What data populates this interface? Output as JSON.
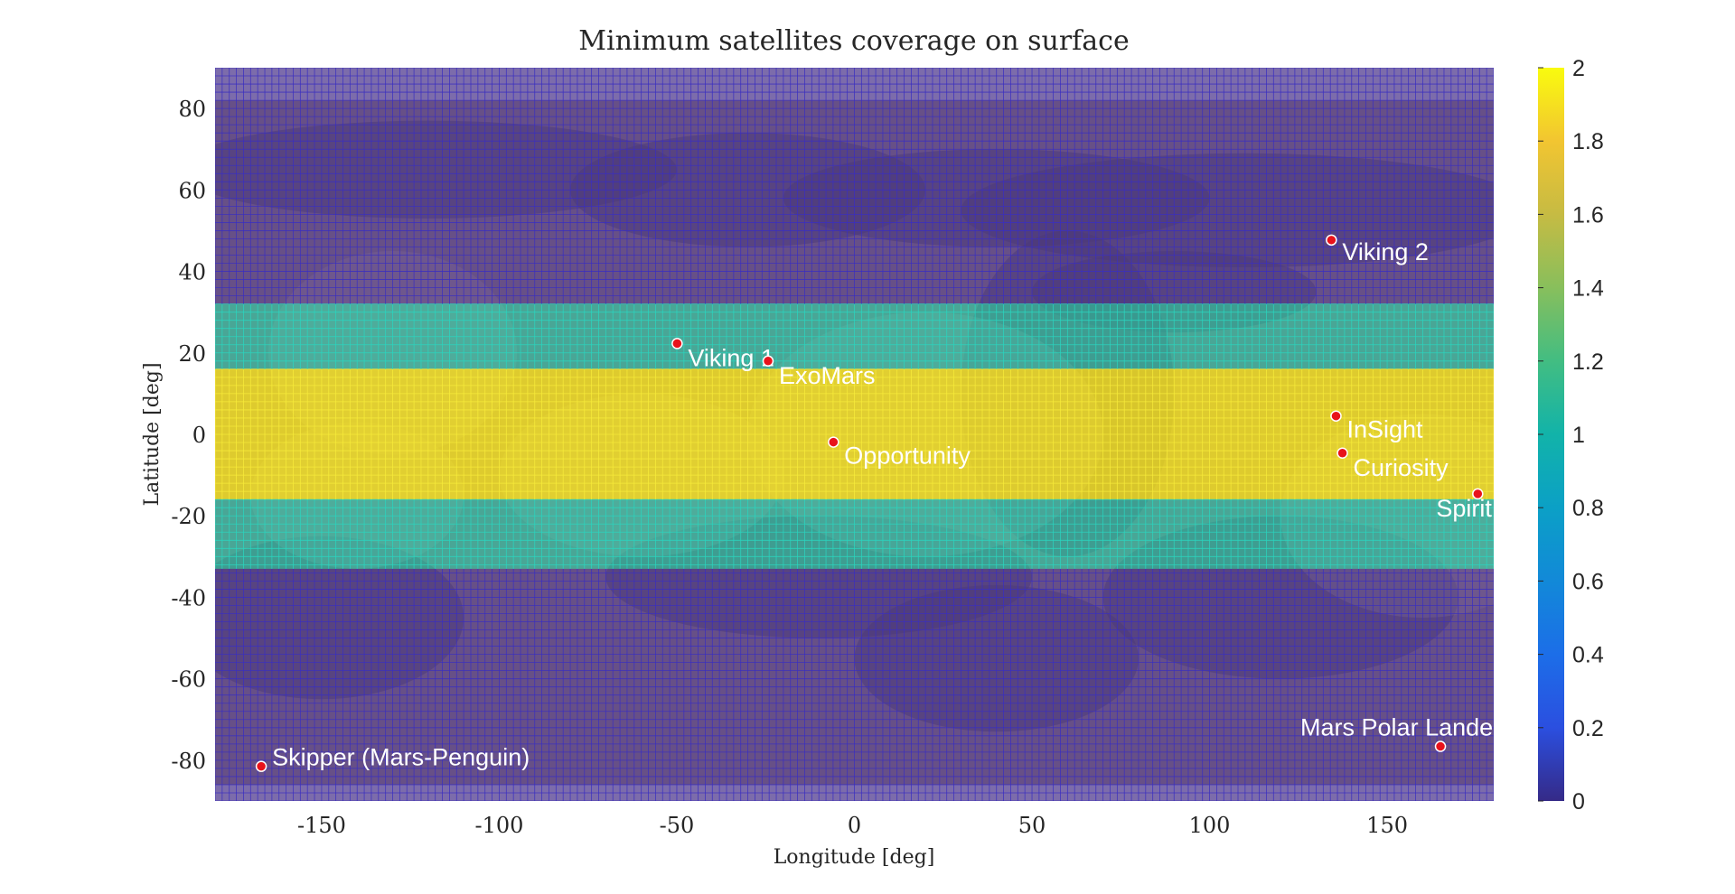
{
  "chart_data": {
    "type": "heatmap",
    "title": "Minimum satellites coverage on surface",
    "xlabel": "Longitude [deg]",
    "ylabel": "Latitude [deg]",
    "xlim": [
      -180,
      180
    ],
    "ylim": [
      -90,
      90
    ],
    "x_ticks": [
      -150,
      -100,
      -50,
      0,
      50,
      100,
      150
    ],
    "y_ticks": [
      -80,
      -60,
      -40,
      -20,
      0,
      20,
      40,
      60,
      80
    ],
    "background": "Mars surface map (equirectangular)",
    "grid": true,
    "colormap": "parula",
    "colorbar": {
      "min": 0,
      "max": 2,
      "ticks": [
        "0",
        "0.2",
        "0.4",
        "0.6",
        "0.8",
        "1",
        "1.2",
        "1.4",
        "1.6",
        "1.8",
        "2"
      ]
    },
    "coverage_bands": [
      {
        "lat_min": -90,
        "lat_max": -33,
        "value": 0
      },
      {
        "lat_min": -33,
        "lat_max": -16,
        "value": 1
      },
      {
        "lat_min": -16,
        "lat_max": 16,
        "value": 2
      },
      {
        "lat_min": 16,
        "lat_max": 32,
        "value": 1
      },
      {
        "lat_min": 32,
        "lat_max": 90,
        "value": 0
      }
    ],
    "landing_sites": [
      {
        "name": "Viking 2",
        "lon": 134.3,
        "lat": 47.7
      },
      {
        "name": "Viking 1",
        "lon": -49.9,
        "lat": 22.3
      },
      {
        "name": "ExoMars",
        "lon": -24.3,
        "lat": 18.0
      },
      {
        "name": "InSight",
        "lon": 135.6,
        "lat": 4.5
      },
      {
        "name": "Opportunity",
        "lon": -5.9,
        "lat": -1.9
      },
      {
        "name": "Curiosity",
        "lon": 137.4,
        "lat": -4.6
      },
      {
        "name": "Spirit",
        "lon": 175.5,
        "lat": -14.6
      },
      {
        "name": "Mars Polar Lander",
        "lon": 165.0,
        "lat": -76.6
      },
      {
        "name": "Skipper (Mars-Penguin)",
        "lon": -167.0,
        "lat": -81.5
      }
    ],
    "colors": {
      "marker": "#e8131b",
      "label_text": "#ffffff",
      "grid_low": "#3d2ea8",
      "grid_mid": "#1fc8b2",
      "grid_high": "#f5e51e"
    }
  }
}
